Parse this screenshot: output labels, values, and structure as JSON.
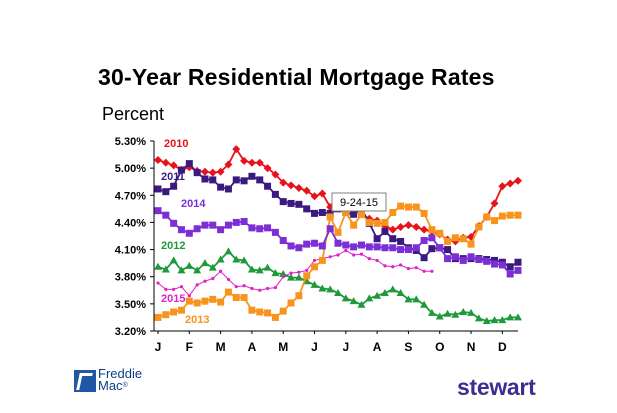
{
  "title": "30-Year Residential Mortgage Rates",
  "ylabel": "Percent",
  "callout": "9-24-15",
  "logos": {
    "freddie_line1": "Freddie",
    "freddie_line2": "Mac",
    "freddie_reg": "®",
    "stewart": "stewart"
  },
  "chart_data": {
    "type": "line",
    "title": "30-Year Residential Mortgage Rates",
    "ylabel": "Percent",
    "xlabel": "",
    "ylim": [
      3.2,
      5.3
    ],
    "yticks": [
      "5.30%",
      "5.00%",
      "4.70%",
      "4.40%",
      "4.10%",
      "3.80%",
      "3.50%",
      "3.20%"
    ],
    "categories": [
      "J",
      "F",
      "M",
      "A",
      "M",
      "J",
      "J",
      "A",
      "S",
      "O",
      "N",
      "D"
    ],
    "grid": false,
    "series": [
      {
        "name": "2010",
        "color": "#e8121a",
        "marker": "diamond",
        "x": [
          0,
          0.25,
          0.5,
          0.75,
          1,
          1.25,
          1.5,
          1.75,
          2,
          2.25,
          2.5,
          2.75,
          3,
          3.25,
          3.5,
          3.75,
          4,
          4.25,
          4.5,
          4.75,
          5,
          5.25,
          5.5,
          5.75,
          6,
          6.25,
          6.5,
          6.75,
          7,
          7.25,
          7.5,
          7.75,
          8,
          8.25,
          8.5,
          8.75,
          9,
          9.25,
          9.5,
          9.75,
          10,
          10.25,
          10.5,
          10.75,
          11,
          11.25,
          11.5
        ],
        "values": [
          5.09,
          5.06,
          5.03,
          4.98,
          5.01,
          4.97,
          4.96,
          4.95,
          4.96,
          5.04,
          5.21,
          5.08,
          5.06,
          5.06,
          5.0,
          4.93,
          4.84,
          4.81,
          4.78,
          4.75,
          4.69,
          4.72,
          4.57,
          4.58,
          4.56,
          4.59,
          4.49,
          4.44,
          4.42,
          4.36,
          4.32,
          4.35,
          4.37,
          4.35,
          4.32,
          4.3,
          4.27,
          4.21,
          4.19,
          4.23,
          4.24,
          4.36,
          4.46,
          4.61,
          4.8,
          4.83,
          4.86
        ]
      },
      {
        "name": "2011",
        "color": "#3b1a80",
        "marker": "square",
        "x": [
          0,
          0.25,
          0.5,
          0.75,
          1,
          1.25,
          1.5,
          1.75,
          2,
          2.25,
          2.5,
          2.75,
          3,
          3.25,
          3.5,
          3.75,
          4,
          4.25,
          4.5,
          4.75,
          5,
          5.25,
          5.5,
          5.75,
          6,
          6.25,
          6.5,
          6.75,
          7,
          7.25,
          7.5,
          7.75,
          8,
          8.25,
          8.5,
          8.75,
          9,
          9.25,
          9.5,
          9.75,
          10,
          10.25,
          10.5,
          10.75,
          11,
          11.25,
          11.5
        ],
        "values": [
          4.77,
          4.74,
          4.8,
          4.98,
          5.05,
          4.95,
          4.88,
          4.87,
          4.79,
          4.77,
          4.87,
          4.86,
          4.91,
          4.87,
          4.8,
          4.71,
          4.63,
          4.61,
          4.6,
          4.55,
          4.5,
          4.51,
          4.5,
          4.55,
          4.51,
          4.49,
          4.55,
          4.39,
          4.22,
          4.3,
          4.22,
          4.19,
          4.12,
          4.09,
          4.01,
          4.11,
          4.12,
          4.1,
          4.0,
          4.0,
          4.0,
          4.0,
          3.99,
          3.98,
          3.96,
          3.91,
          3.96
        ]
      },
      {
        "name": "2014",
        "color": "#7b2fd4",
        "marker": "square",
        "x": [
          0,
          0.25,
          0.5,
          0.75,
          1,
          1.25,
          1.5,
          1.75,
          2,
          2.25,
          2.5,
          2.75,
          3,
          3.25,
          3.5,
          3.75,
          4,
          4.25,
          4.5,
          4.75,
          5,
          5.25,
          5.5,
          5.75,
          6,
          6.25,
          6.5,
          6.75,
          7,
          7.25,
          7.5,
          7.75,
          8,
          8.25,
          8.5,
          8.75,
          9,
          9.25,
          9.5,
          9.75,
          10,
          10.25,
          10.5,
          10.75,
          11,
          11.25,
          11.5
        ],
        "values": [
          4.53,
          4.48,
          4.39,
          4.32,
          4.28,
          4.33,
          4.37,
          4.37,
          4.32,
          4.37,
          4.4,
          4.41,
          4.34,
          4.33,
          4.34,
          4.29,
          4.2,
          4.14,
          4.12,
          4.16,
          4.17,
          4.14,
          4.33,
          4.17,
          4.15,
          4.13,
          4.15,
          4.13,
          4.13,
          4.12,
          4.12,
          4.1,
          4.1,
          4.12,
          4.2,
          4.23,
          4.12,
          4.0,
          4.02,
          3.98,
          4.02,
          3.99,
          3.97,
          3.94,
          3.93,
          3.83,
          3.87
        ]
      },
      {
        "name": "2012",
        "color": "#1e9a3a",
        "marker": "triangle",
        "x": [
          0,
          0.25,
          0.5,
          0.75,
          1,
          1.25,
          1.5,
          1.75,
          2,
          2.25,
          2.5,
          2.75,
          3,
          3.25,
          3.5,
          3.75,
          4,
          4.25,
          4.5,
          4.75,
          5,
          5.25,
          5.5,
          5.75,
          6,
          6.25,
          6.5,
          6.75,
          7,
          7.25,
          7.5,
          7.75,
          8,
          8.25,
          8.5,
          8.75,
          9,
          9.25,
          9.5,
          9.75,
          10,
          10.25,
          10.5,
          10.75,
          11,
          11.25,
          11.5
        ],
        "values": [
          3.91,
          3.88,
          3.98,
          3.87,
          3.92,
          3.87,
          3.95,
          3.9,
          3.99,
          4.08,
          3.99,
          3.98,
          3.88,
          3.87,
          3.9,
          3.84,
          3.83,
          3.79,
          3.79,
          3.75,
          3.71,
          3.67,
          3.66,
          3.62,
          3.56,
          3.53,
          3.49,
          3.56,
          3.59,
          3.62,
          3.66,
          3.62,
          3.55,
          3.55,
          3.49,
          3.4,
          3.36,
          3.39,
          3.38,
          3.41,
          3.4,
          3.34,
          3.31,
          3.32,
          3.32,
          3.35,
          3.35
        ]
      },
      {
        "name": "2015",
        "color": "#e020c8",
        "marker": "dot",
        "x": [
          0,
          0.25,
          0.5,
          0.75,
          1,
          1.25,
          1.5,
          1.75,
          2,
          2.25,
          2.5,
          2.75,
          3,
          3.25,
          3.5,
          3.75,
          4,
          4.25,
          4.5,
          4.75,
          5,
          5.25,
          5.5,
          5.75,
          6,
          6.25,
          6.5,
          6.75,
          7,
          7.25,
          7.5,
          7.75,
          8,
          8.25,
          8.5,
          8.75
        ],
        "values": [
          3.73,
          3.66,
          3.66,
          3.69,
          3.59,
          3.71,
          3.75,
          3.78,
          3.86,
          3.77,
          3.69,
          3.7,
          3.67,
          3.65,
          3.67,
          3.68,
          3.8,
          3.84,
          3.85,
          3.87,
          3.98,
          4.0,
          4.02,
          4.04,
          4.09,
          4.04,
          4.05,
          4.0,
          3.98,
          3.92,
          3.91,
          3.93,
          3.89,
          3.9,
          3.86,
          3.86
        ]
      },
      {
        "name": "2013",
        "color": "#f7941d",
        "marker": "square",
        "x": [
          0,
          0.25,
          0.5,
          0.75,
          1,
          1.25,
          1.5,
          1.75,
          2,
          2.25,
          2.5,
          2.75,
          3,
          3.25,
          3.5,
          3.75,
          4,
          4.25,
          4.5,
          4.75,
          5,
          5.25,
          5.5,
          5.75,
          6,
          6.25,
          6.5,
          6.75,
          7,
          7.25,
          7.5,
          7.75,
          8,
          8.25,
          8.5,
          8.75,
          9,
          9.25,
          9.5,
          9.75,
          10,
          10.25,
          10.5,
          10.75,
          11,
          11.25,
          11.5
        ],
        "values": [
          3.35,
          3.38,
          3.41,
          3.43,
          3.53,
          3.51,
          3.53,
          3.55,
          3.52,
          3.63,
          3.57,
          3.57,
          3.43,
          3.41,
          3.4,
          3.35,
          3.42,
          3.51,
          3.59,
          3.81,
          3.91,
          3.98,
          4.46,
          4.29,
          4.51,
          4.37,
          4.49,
          4.4,
          4.39,
          4.4,
          4.51,
          4.58,
          4.57,
          4.57,
          4.5,
          4.32,
          4.28,
          4.19,
          4.23,
          4.22,
          4.16,
          4.35,
          4.46,
          4.42,
          4.47,
          4.48,
          4.48
        ]
      }
    ]
  }
}
